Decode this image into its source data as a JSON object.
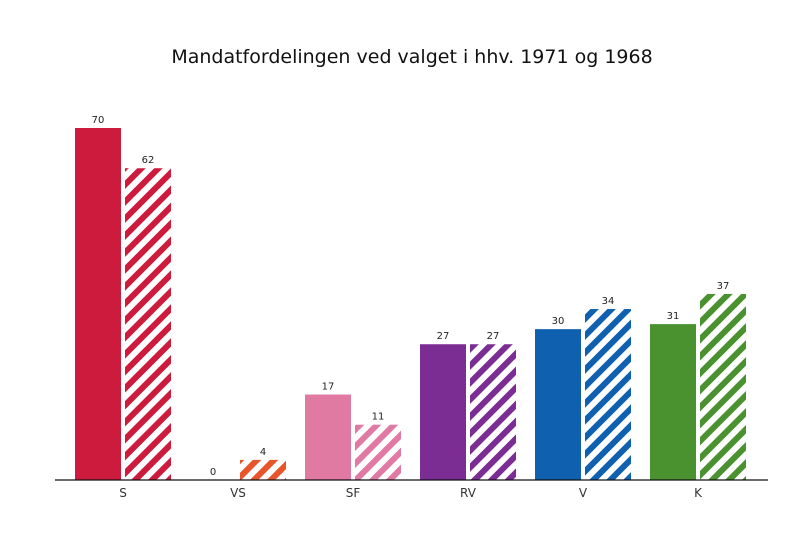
{
  "chart_data": {
    "type": "bar",
    "title": "Mandatfordelingen ved valget i hhv. 1971 og 1968",
    "xlabel": "",
    "ylabel": "",
    "ylim": [
      0,
      70
    ],
    "grid": false,
    "legend": "none",
    "categories": [
      "S",
      "VS",
      "SF",
      "RV",
      "V",
      "K"
    ],
    "series": [
      {
        "values": [
          70,
          0,
          17,
          27,
          30,
          31
        ],
        "fill": "solid"
      },
      {
        "values": [
          62,
          4,
          11,
          27,
          34,
          37
        ],
        "fill": "hatched"
      }
    ],
    "colors": [
      "#cc1b3d",
      "#e8552b",
      "#e07aa3",
      "#7b2d93",
      "#1060b0",
      "#4a9130"
    ]
  }
}
